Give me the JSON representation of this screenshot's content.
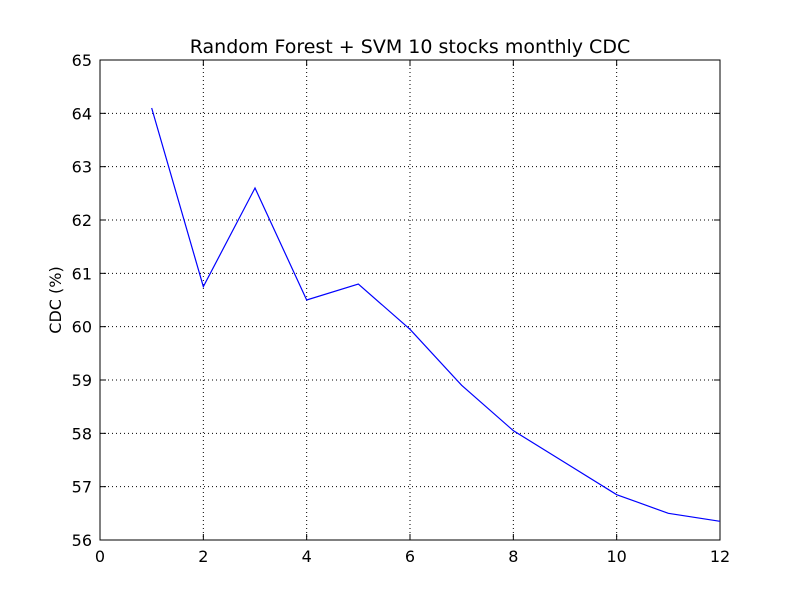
{
  "chart_data": {
    "type": "line",
    "title": "Random Forest + SVM 10 stocks monthly CDC",
    "xlabel": "",
    "ylabel": "CDC (%)",
    "xlim": [
      0,
      12
    ],
    "ylim": [
      56,
      65
    ],
    "xticks": [
      0,
      2,
      4,
      6,
      8,
      10,
      12
    ],
    "yticks": [
      56,
      57,
      58,
      59,
      60,
      61,
      62,
      63,
      64,
      65
    ],
    "grid": true,
    "series": [
      {
        "name": "CDC",
        "color": "#0000ff",
        "x": [
          1,
          2,
          3,
          4,
          5,
          6,
          7,
          8,
          9,
          10,
          11,
          12
        ],
        "values": [
          64.1,
          60.75,
          62.6,
          60.5,
          60.8,
          59.95,
          58.9,
          58.05,
          57.45,
          56.85,
          56.5,
          56.35
        ]
      }
    ]
  }
}
